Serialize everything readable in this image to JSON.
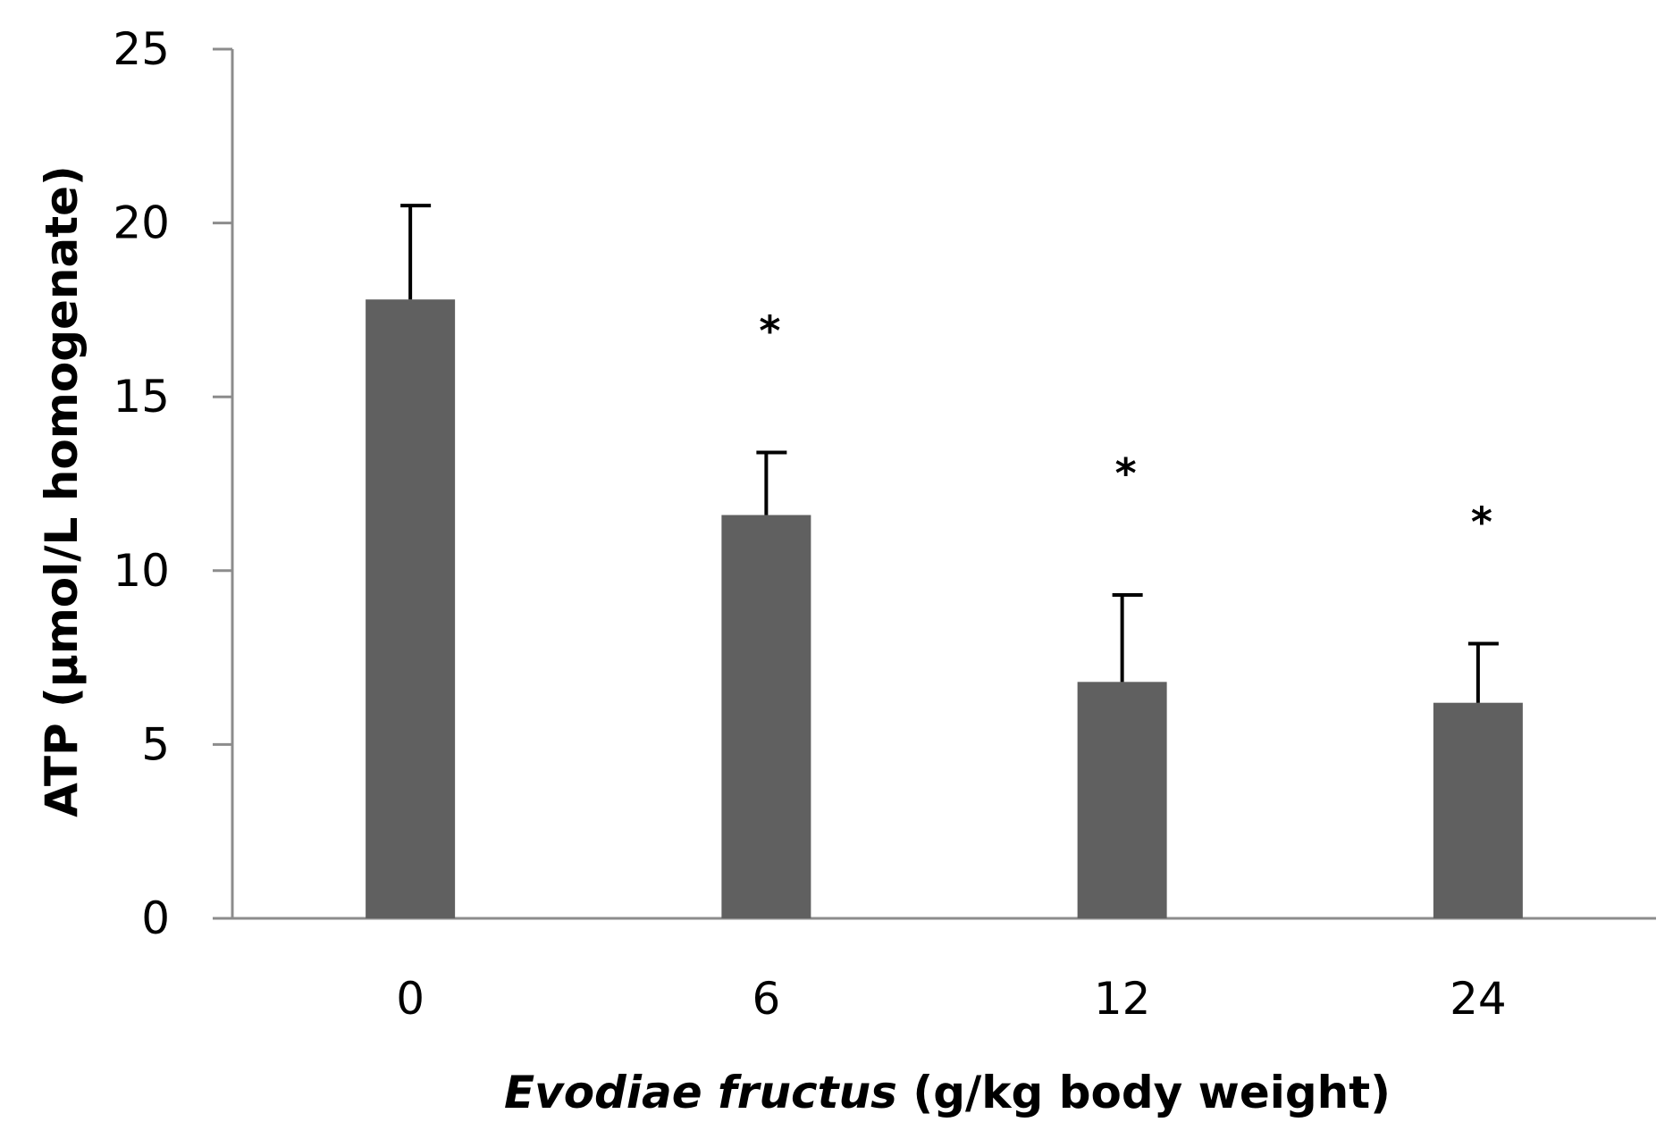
{
  "chart_data": {
    "type": "bar",
    "categories": [
      "0",
      "6",
      "12",
      "24"
    ],
    "values": [
      17.8,
      11.6,
      6.8,
      6.2
    ],
    "error_plus": [
      2.7,
      1.8,
      2.5,
      1.7
    ],
    "significance": [
      "",
      "*",
      "*",
      "*"
    ],
    "xlabel_italic": "Evodiae fructus",
    "xlabel_rest": " (g/kg body weight)",
    "ylabel": "ATP (μmol/L homogenate)",
    "ylim": [
      0,
      25
    ],
    "yticks": [
      0,
      5,
      10,
      15,
      20,
      25
    ],
    "grid": false,
    "bar_color": "#606060",
    "axis_color": "#8c8c8c"
  }
}
